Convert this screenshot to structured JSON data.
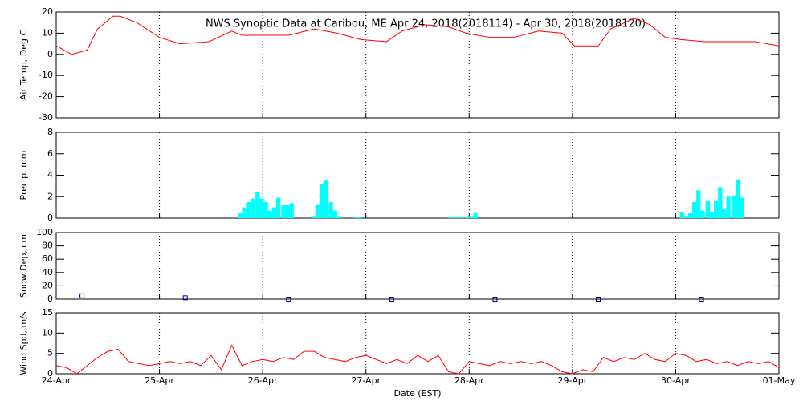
{
  "chart_data": [
    {
      "type": "line",
      "title": "NWS Synoptic Data at Caribou, ME   Apr 24, 2018(2018114) - Apr 30, 2018(2018120)",
      "ylabel": "Air Temp, Deg C",
      "color": "#ff0000",
      "x": [
        0,
        0.15,
        0.3,
        0.4,
        0.55,
        0.62,
        0.78,
        1.0,
        1.2,
        1.48,
        1.7,
        1.8,
        2.0,
        2.25,
        2.5,
        2.72,
        2.95,
        3.2,
        3.35,
        3.57,
        3.8,
        3.97,
        4.2,
        4.43,
        4.67,
        4.9,
        5.02,
        5.25,
        5.37,
        5.6,
        5.75,
        5.9,
        6.05,
        6.28,
        6.5,
        6.77,
        7.0
      ],
      "values": [
        4,
        0,
        2,
        12,
        18,
        18,
        15,
        8,
        5,
        6,
        11,
        9,
        9,
        9,
        12,
        10,
        7,
        6,
        11,
        14,
        13,
        10,
        8,
        8,
        11,
        10,
        4,
        4,
        12,
        17,
        14,
        8,
        7,
        6,
        6,
        6,
        4
      ],
      "xlim": [
        0,
        7
      ],
      "xticks": [
        0,
        1,
        2,
        3,
        4,
        5,
        6,
        7
      ],
      "ylim": [
        -30,
        20
      ],
      "yticks": [
        -30,
        -20,
        -10,
        0,
        10,
        20
      ]
    },
    {
      "type": "bar",
      "ylabel": "Precip, mm",
      "color": "#00ffff",
      "x": [
        1.76,
        1.8,
        1.84,
        1.88,
        1.93,
        1.97,
        2.01,
        2.05,
        2.09,
        2.13,
        2.18,
        2.22,
        2.26,
        2.47,
        2.51,
        2.55,
        2.59,
        2.64,
        2.68,
        2.72,
        2.88,
        2.92,
        3.79,
        3.83,
        3.87,
        3.91,
        3.96,
        4.0,
        4.04,
        6.04,
        6.08,
        6.12,
        6.16,
        6.2,
        6.24,
        6.29,
        6.33,
        6.37,
        6.41,
        6.45,
        6.49,
        6.54,
        6.58,
        6.62
      ],
      "values": [
        0.5,
        1.0,
        1.5,
        1.8,
        2.4,
        1.8,
        1.5,
        0.7,
        1.0,
        1.9,
        1.2,
        1.2,
        1.4,
        0.2,
        1.3,
        3.2,
        3.5,
        1.5,
        0.7,
        0.2,
        0.1,
        0.1,
        0.1,
        0.1,
        0.1,
        0.1,
        0.1,
        0.2,
        0.5,
        0.6,
        0.2,
        0.5,
        1.5,
        2.6,
        0.7,
        1.6,
        0.6,
        1.6,
        2.9,
        0.9,
        2.0,
        2.1,
        3.6,
        1.9
      ],
      "xlim": [
        0,
        7
      ],
      "xticks": [
        0,
        1,
        2,
        3,
        4,
        5,
        6,
        7
      ],
      "ylim": [
        0,
        8
      ],
      "yticks": [
        0,
        2,
        4,
        6,
        8
      ]
    },
    {
      "type": "scatter",
      "ylabel": "Snow Dep, cm",
      "color": "#000080",
      "x": [
        0.25,
        1.25,
        2.25,
        3.25,
        4.25,
        5.25,
        6.25
      ],
      "values": [
        5,
        2,
        0,
        0,
        0,
        0,
        0
      ],
      "xlim": [
        0,
        7
      ],
      "xticks": [
        0,
        1,
        2,
        3,
        4,
        5,
        6,
        7
      ],
      "ylim": [
        0,
        100
      ],
      "yticks": [
        0,
        20,
        40,
        60,
        80,
        100
      ]
    },
    {
      "type": "line",
      "ylabel": "Wind Spd, m/s",
      "xlabel": "Date (EST)",
      "color": "#ff0000",
      "x": [
        0,
        0.1,
        0.2,
        0.3,
        0.4,
        0.5,
        0.6,
        0.7,
        0.8,
        0.9,
        1.0,
        1.1,
        1.2,
        1.3,
        1.4,
        1.5,
        1.6,
        1.7,
        1.8,
        1.9,
        2.0,
        2.1,
        2.2,
        2.3,
        2.4,
        2.5,
        2.6,
        2.7,
        2.8,
        2.9,
        3.0,
        3.1,
        3.2,
        3.3,
        3.4,
        3.5,
        3.6,
        3.7,
        3.8,
        3.9,
        4.0,
        4.1,
        4.2,
        4.3,
        4.4,
        4.5,
        4.6,
        4.7,
        4.8,
        4.9,
        5.0,
        5.1,
        5.2,
        5.3,
        5.4,
        5.5,
        5.6,
        5.7,
        5.8,
        5.9,
        6.0,
        6.1,
        6.2,
        6.3,
        6.4,
        6.5,
        6.6,
        6.7,
        6.8,
        6.9,
        7.0
      ],
      "values": [
        2,
        1.5,
        0,
        2,
        4,
        5.5,
        6,
        3,
        2.5,
        2,
        2.5,
        3,
        2.5,
        3,
        2,
        4.5,
        1,
        7,
        2,
        3,
        3.5,
        3,
        4,
        3.5,
        5.5,
        5.5,
        4,
        3.5,
        3,
        4,
        4.5,
        3.5,
        2.5,
        3.5,
        2.5,
        4.5,
        3,
        4.5,
        0.5,
        0,
        3,
        2.5,
        2,
        3,
        2.5,
        3,
        2.5,
        3,
        2,
        0.5,
        0,
        1,
        0.5,
        4,
        3,
        4,
        3.5,
        5,
        3.5,
        3,
        5,
        4.5,
        3,
        3.5,
        2.5,
        3,
        2,
        3,
        2.5,
        3,
        1.5
      ],
      "xlim": [
        0,
        7
      ],
      "xticks": [
        {
          "value": 0,
          "label": "24-Apr"
        },
        {
          "value": 1,
          "label": "25-Apr"
        },
        {
          "value": 2,
          "label": "26-Apr"
        },
        {
          "value": 3,
          "label": "27-Apr"
        },
        {
          "value": 4,
          "label": "28-Apr"
        },
        {
          "value": 5,
          "label": "29-Apr"
        },
        {
          "value": 6,
          "label": "30-Apr"
        },
        {
          "value": 7,
          "label": "01-May"
        }
      ],
      "ylim": [
        0,
        15
      ],
      "yticks": [
        0,
        5,
        10,
        15
      ]
    }
  ]
}
